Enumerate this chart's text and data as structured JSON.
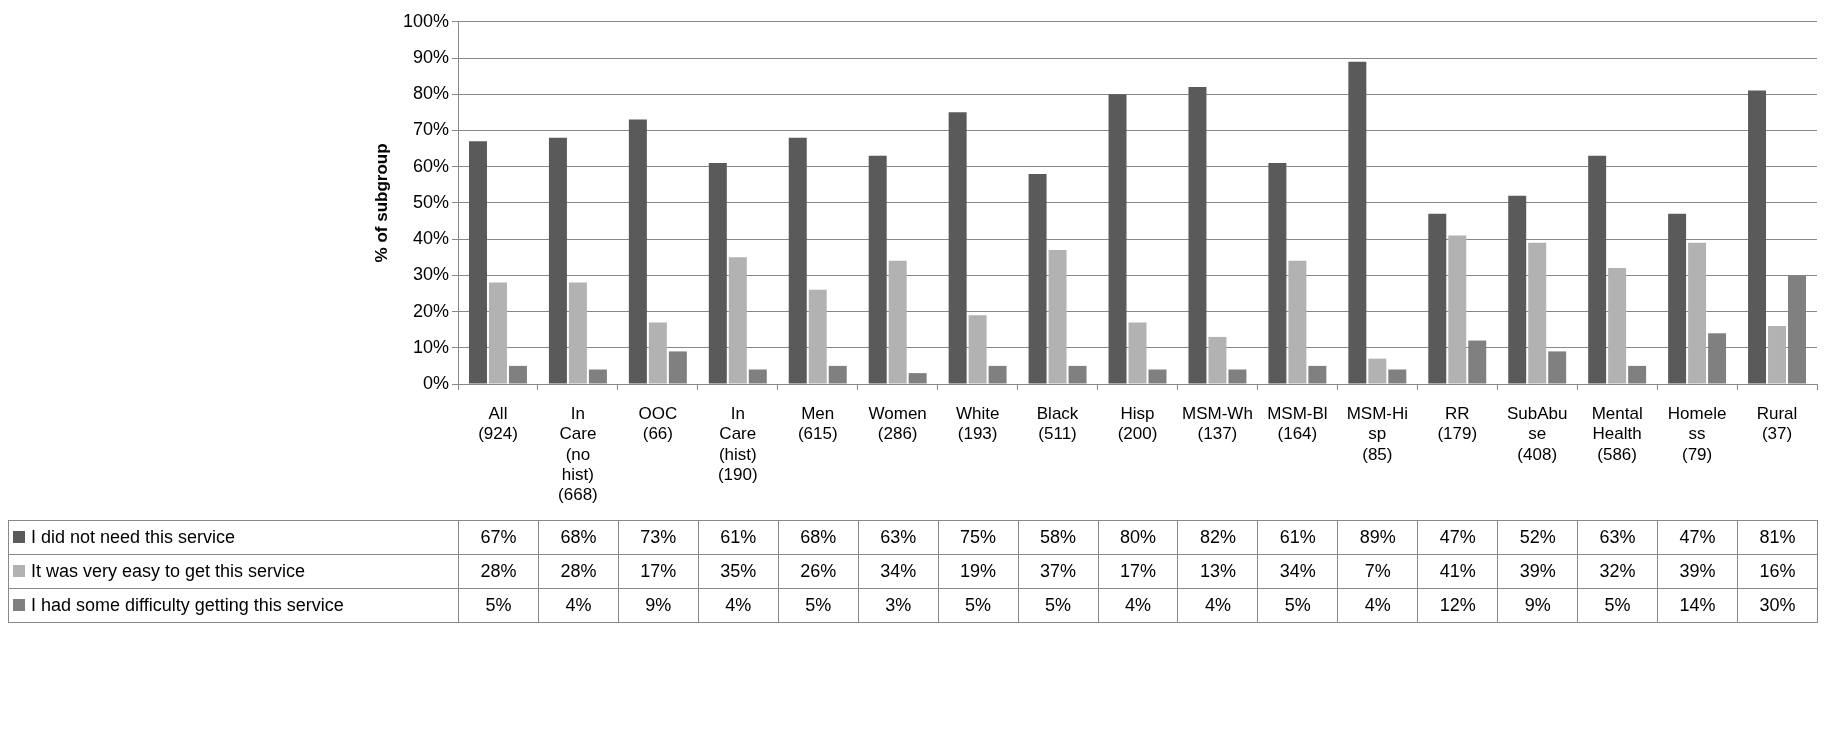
{
  "chart_data": {
    "type": "bar",
    "ylabel": "% of subgroup",
    "categories": [
      "All (924)",
      "In Care (no hist) (668)",
      "OOC (66)",
      "In Care (hist) (190)",
      "Men (615)",
      "Women (286)",
      "White (193)",
      "Black (511)",
      "Hisp (200)",
      "MSM-Wh (137)",
      "MSM-Bl (164)",
      "MSM-Hisp (85)",
      "RR (179)",
      "SubAbuse (408)",
      "MentalHealth (586)",
      "Homeless (79)",
      "Rural (37)"
    ],
    "series": [
      {
        "name": "I did not need this service",
        "color": "#5a5a5a",
        "values": [
          67,
          68,
          73,
          61,
          68,
          63,
          75,
          58,
          80,
          82,
          61,
          89,
          47,
          52,
          63,
          47,
          81
        ],
        "value_labels": [
          "67%",
          "68%",
          "73%",
          "61%",
          "68%",
          "63%",
          "75%",
          "58%",
          "80%",
          "82%",
          "61%",
          "89%",
          "47%",
          "52%",
          "63%",
          "47%",
          "81%"
        ]
      },
      {
        "name": "It was very easy to get this service",
        "color": "#b2b2b2",
        "values": [
          28,
          28,
          17,
          35,
          26,
          34,
          19,
          37,
          17,
          13,
          34,
          7,
          41,
          39,
          32,
          39,
          16
        ],
        "value_labels": [
          "28%",
          "28%",
          "17%",
          "35%",
          "26%",
          "34%",
          "19%",
          "37%",
          "17%",
          "13%",
          "34%",
          "7%",
          "41%",
          "39%",
          "32%",
          "39%",
          "16%"
        ]
      },
      {
        "name": "I had some difficulty getting this service",
        "color": "#808080",
        "values": [
          5,
          4,
          9,
          4,
          5,
          3,
          5,
          5,
          4,
          4,
          5,
          4,
          12,
          9,
          5,
          14,
          30
        ],
        "value_labels": [
          "5%",
          "4%",
          "9%",
          "4%",
          "5%",
          "3%",
          "5%",
          "5%",
          "4%",
          "4%",
          "5%",
          "4%",
          "12%",
          "9%",
          "5%",
          "14%",
          "30%"
        ]
      }
    ],
    "ylim": [
      0,
      100
    ],
    "yticks": [
      {
        "value": 0,
        "label": "0%"
      },
      {
        "value": 10,
        "label": "10%"
      },
      {
        "value": 20,
        "label": "20%"
      },
      {
        "value": 30,
        "label": "30%"
      },
      {
        "value": 40,
        "label": "40%"
      },
      {
        "value": 50,
        "label": "50%"
      },
      {
        "value": 60,
        "label": "60%"
      },
      {
        "value": 70,
        "label": "70%"
      },
      {
        "value": 80,
        "label": "80%"
      },
      {
        "value": 90,
        "label": "90%"
      },
      {
        "value": 100,
        "label": "100%"
      }
    ],
    "grid": "y",
    "legend": "bottom left"
  }
}
